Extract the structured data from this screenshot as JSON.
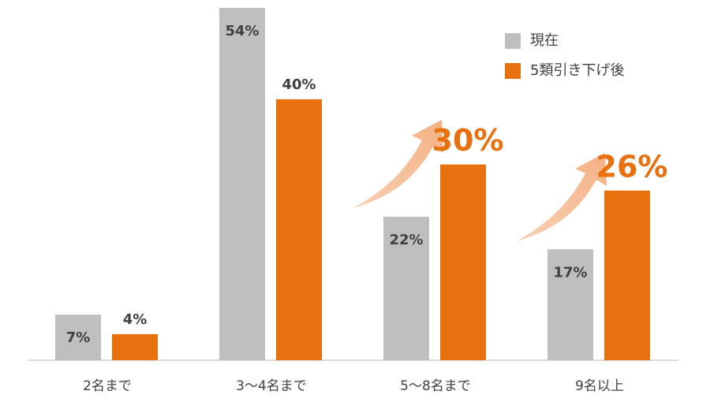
{
  "chart_data": {
    "type": "bar",
    "categories": [
      "2名まで",
      "3〜4名まで",
      "5〜8名まで",
      "9名以上"
    ],
    "series": [
      {
        "name": "現在",
        "color": "#bfbfbf",
        "values": [
          7,
          54,
          22,
          17
        ],
        "value_labels": [
          "7%",
          "54%",
          "22%",
          "17%"
        ]
      },
      {
        "name": "5類引き下げ後",
        "color": "#e8700e",
        "values": [
          4,
          40,
          30,
          26
        ],
        "value_labels": [
          "4%",
          "40%",
          "30%",
          "26%"
        ]
      }
    ]
  }
}
